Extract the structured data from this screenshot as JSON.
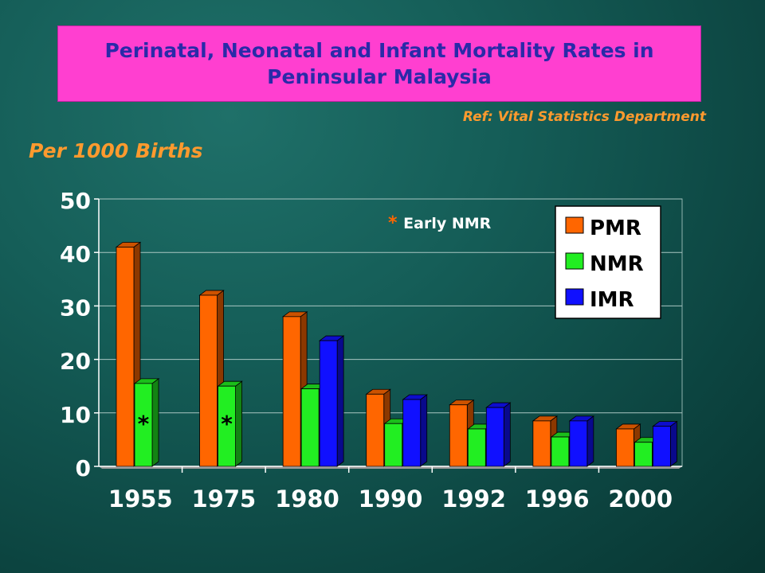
{
  "slide": {
    "title_line1": "Perinatal, Neonatal and Infant Mortality Rates in",
    "title_line2": "Peninsular Malaysia",
    "reference": "Ref: Vital Statistics Department",
    "units_label": "Per 1000 Births"
  },
  "colors": {
    "pmr": "#ff6600",
    "nmr": "#22ee22",
    "imr": "#1010ff",
    "title_bg": "#ff3fd0",
    "title_text": "#2a2aa8",
    "accent": "#ff9a2e"
  },
  "chart_data": {
    "type": "bar",
    "categories": [
      "1955",
      "1975",
      "1980",
      "1990",
      "1992",
      "1996",
      "2000"
    ],
    "series": [
      {
        "name": "PMR",
        "values": [
          41,
          32,
          28,
          13.5,
          11.5,
          8.5,
          7
        ]
      },
      {
        "name": "NMR",
        "values": [
          15.5,
          15,
          14.5,
          8,
          7,
          5.5,
          4.5
        ]
      },
      {
        "name": "IMR",
        "values": [
          null,
          null,
          23.5,
          12.5,
          11,
          8.5,
          7.5
        ]
      }
    ],
    "yticks": [
      0,
      10,
      20,
      30,
      40,
      50
    ],
    "ylim": [
      0,
      50
    ],
    "grid": true,
    "legend_position": "top-right",
    "annotation": {
      "marker": "*",
      "text": "Early NMR"
    },
    "starred": [
      {
        "category": "1955",
        "series": "NMR"
      },
      {
        "category": "1975",
        "series": "NMR"
      }
    ]
  }
}
